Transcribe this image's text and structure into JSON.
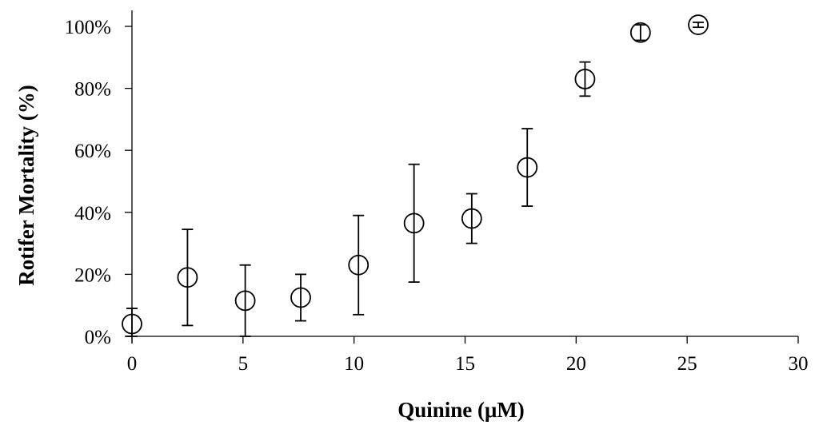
{
  "chart_data": {
    "type": "scatter",
    "title": "",
    "xlabel": "Quinine (μM)",
    "ylabel": "Rotifer Mortality (%)",
    "xlim": [
      0,
      30
    ],
    "ylim": [
      0,
      100
    ],
    "x_ticks": [
      0,
      5,
      10,
      15,
      20,
      25,
      30
    ],
    "y_ticks": [
      0,
      20,
      40,
      60,
      80,
      100
    ],
    "x_tick_labels": [
      "0",
      "5",
      "10",
      "15",
      "20",
      "25",
      "30"
    ],
    "y_tick_labels": [
      "0%",
      "20%",
      "40%",
      "60%",
      "80%",
      "100%"
    ],
    "grid": false,
    "legend": "none",
    "marker": "open-circle",
    "points": [
      {
        "x": 0,
        "y": 4,
        "err": 5
      },
      {
        "x": 2.5,
        "y": 19,
        "err": 15.5
      },
      {
        "x": 5.1,
        "y": 11.5,
        "err": 11.5
      },
      {
        "x": 7.6,
        "y": 12.5,
        "err": 7.5
      },
      {
        "x": 10.2,
        "y": 23,
        "err": 16
      },
      {
        "x": 12.7,
        "y": 36.5,
        "err": 19
      },
      {
        "x": 15.3,
        "y": 38,
        "err": 8
      },
      {
        "x": 17.8,
        "y": 54.5,
        "err": 12.5
      },
      {
        "x": 20.4,
        "y": 83,
        "err": 5.5
      },
      {
        "x": 22.9,
        "y": 98,
        "err": 2.5
      },
      {
        "x": 25.5,
        "y": 100.5,
        "err": 0.8
      }
    ]
  }
}
